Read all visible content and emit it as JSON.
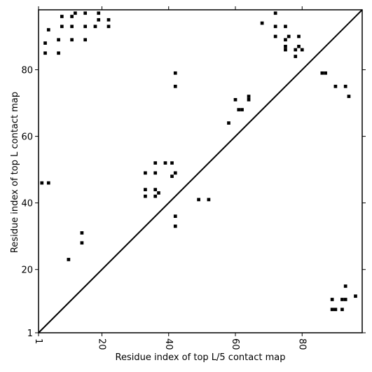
{
  "chart_data": {
    "type": "scatter",
    "title": "",
    "xlabel": "Residue index of top L/5 contact map",
    "ylabel": "Residue index of top L contact map",
    "xlim": [
      1,
      98
    ],
    "ylim": [
      1,
      98
    ],
    "x_ticks": [
      1,
      20,
      40,
      60,
      80
    ],
    "y_ticks": [
      1,
      20,
      40,
      60,
      80
    ],
    "x_tick_labels": [
      "1",
      "20",
      "40",
      "60",
      "80"
    ],
    "y_tick_labels": [
      "1",
      "20",
      "40",
      "60",
      "80"
    ],
    "diagonal": [
      [
        1,
        1
      ],
      [
        98,
        98
      ]
    ],
    "grid": false,
    "upper_points": [
      [
        3,
        85
      ],
      [
        3,
        88
      ],
      [
        4,
        92
      ],
      [
        7,
        85
      ],
      [
        7,
        89
      ],
      [
        8,
        93
      ],
      [
        8,
        96
      ],
      [
        11,
        89
      ],
      [
        11,
        93
      ],
      [
        11,
        96
      ],
      [
        12,
        97
      ],
      [
        15,
        89
      ],
      [
        15,
        93
      ],
      [
        15,
        97
      ],
      [
        18,
        93
      ],
      [
        19,
        95
      ],
      [
        19,
        97
      ],
      [
        22,
        93
      ],
      [
        22,
        95
      ],
      [
        42,
        75
      ],
      [
        42,
        79
      ],
      [
        61,
        68
      ],
      [
        62,
        68
      ],
      [
        64,
        71
      ],
      [
        64,
        72
      ],
      [
        58,
        64
      ],
      [
        60,
        71
      ],
      [
        68,
        94
      ],
      [
        72,
        90
      ],
      [
        72,
        93
      ],
      [
        72,
        97
      ],
      [
        75,
        86
      ],
      [
        75,
        87
      ],
      [
        75,
        89
      ],
      [
        75,
        93
      ],
      [
        76,
        90
      ],
      [
        78,
        84
      ],
      [
        78,
        86
      ],
      [
        79,
        87
      ],
      [
        79,
        90
      ],
      [
        80,
        86
      ],
      [
        86,
        79
      ],
      [
        87,
        79
      ],
      [
        90,
        75
      ],
      [
        93,
        75
      ],
      [
        94,
        72
      ],
      [
        2,
        46
      ],
      [
        4,
        46
      ],
      [
        33,
        42
      ],
      [
        33,
        44
      ],
      [
        33,
        49
      ],
      [
        36,
        42
      ],
      [
        36,
        44
      ],
      [
        36,
        49
      ],
      [
        36,
        52
      ],
      [
        37,
        43
      ],
      [
        39,
        52
      ],
      [
        41,
        48
      ],
      [
        41,
        52
      ],
      [
        42,
        33
      ],
      [
        42,
        36
      ],
      [
        42,
        49
      ],
      [
        49,
        41
      ],
      [
        52,
        41
      ],
      [
        10,
        23
      ],
      [
        14,
        28
      ],
      [
        14,
        31
      ]
    ],
    "lower_points": [
      [
        89,
        11
      ],
      [
        89,
        8
      ],
      [
        90,
        8
      ],
      [
        92,
        8
      ],
      [
        92,
        11
      ],
      [
        93,
        11
      ],
      [
        93,
        15
      ],
      [
        96,
        12
      ]
    ]
  }
}
